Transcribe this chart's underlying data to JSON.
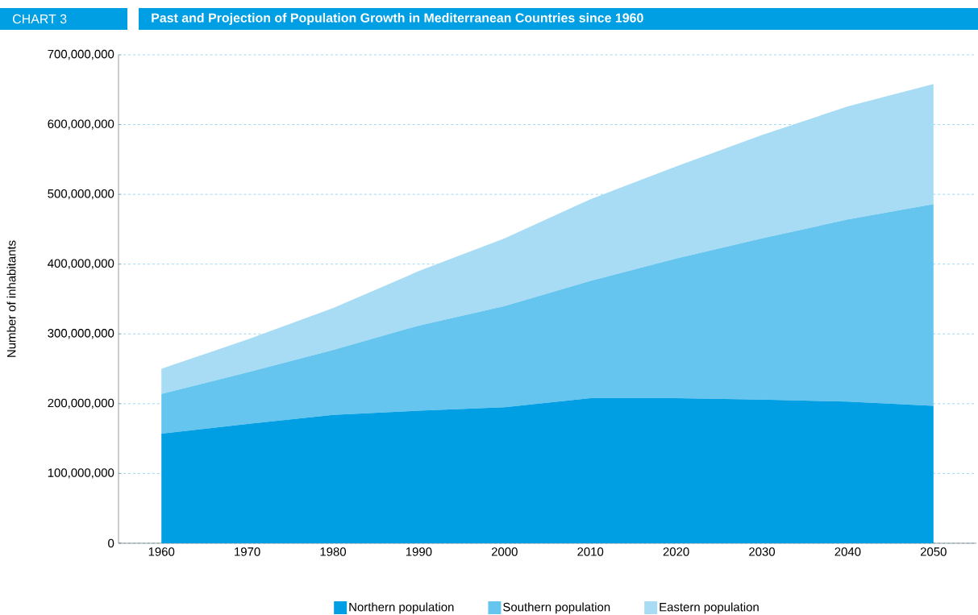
{
  "chart_data": {
    "type": "area",
    "stacked": true,
    "title": "Past and Projection of Population Growth in Mediterranean Countries since 1960",
    "annotations": [
      "CHART 3"
    ],
    "ylabel": "Number of inhabitants",
    "categories": [
      "1960",
      "1970",
      "1980",
      "1990",
      "2000",
      "2010",
      "2020",
      "2030",
      "2040",
      "2050"
    ],
    "series": [
      {
        "name": "Northern population",
        "color": "#009fe3",
        "values": [
          157000000,
          171000000,
          184000000,
          190000000,
          195000000,
          208000000,
          208000000,
          206000000,
          203000000,
          197000000
        ]
      },
      {
        "name": "Southern population",
        "color": "#66c5ee",
        "values": [
          57000000,
          74000000,
          93000000,
          122000000,
          145000000,
          168000000,
          200000000,
          231000000,
          261000000,
          289000000
        ]
      },
      {
        "name": "Eastern population",
        "color": "#a8dcf4",
        "values": [
          36000000,
          47000000,
          60000000,
          78000000,
          97000000,
          117000000,
          132000000,
          148000000,
          162000000,
          172000000
        ]
      }
    ],
    "ylim": [
      0,
      700000000
    ],
    "yticks": [
      {
        "value": 0,
        "label": "0"
      },
      {
        "value": 100000000,
        "label": "100,000,000"
      },
      {
        "value": 200000000,
        "label": "200,000,000"
      },
      {
        "value": 300000000,
        "label": "300,000,000"
      },
      {
        "value": 400000000,
        "label": "400,000,000"
      },
      {
        "value": 500000000,
        "label": "500,000,000"
      },
      {
        "value": 600000000,
        "label": "600,000,000"
      },
      {
        "value": 700000000,
        "label": "700,000,000"
      }
    ],
    "grid": "y",
    "legend": "bottom"
  }
}
